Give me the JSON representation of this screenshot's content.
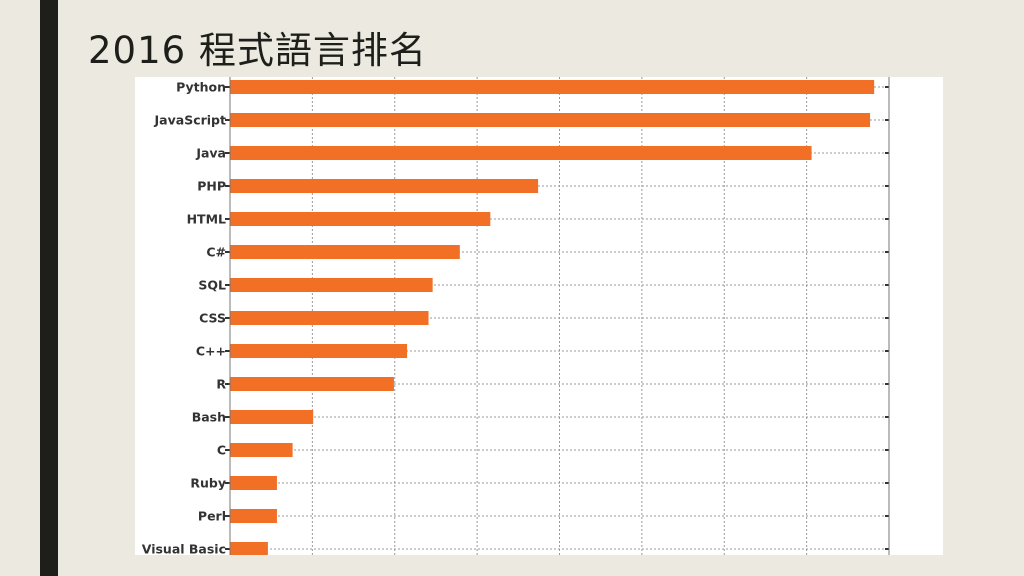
{
  "slide": {
    "title": "2016 程式語言排名"
  },
  "colors": {
    "bar": "#f26f26",
    "background": "#ece9e1",
    "accent_bar": "#1e1e1a"
  },
  "chart_data": {
    "type": "bar",
    "orientation": "horizontal",
    "title": "",
    "xlabel": "",
    "ylabel": "",
    "x_tick_labels_shown": false,
    "grid": true,
    "xlim": [
      0,
      8
    ],
    "categories": [
      "Python",
      "JavaScript",
      "Java",
      "PHP",
      "HTML",
      "C#",
      "SQL",
      "CSS",
      "C++",
      "R",
      "Bash",
      "C",
      "Ruby",
      "Perl",
      "Visual Basic"
    ],
    "values": [
      7.82,
      7.77,
      7.06,
      3.74,
      3.16,
      2.79,
      2.46,
      2.41,
      2.15,
      1.99,
      1.01,
      0.76,
      0.57,
      0.57,
      0.46
    ]
  }
}
